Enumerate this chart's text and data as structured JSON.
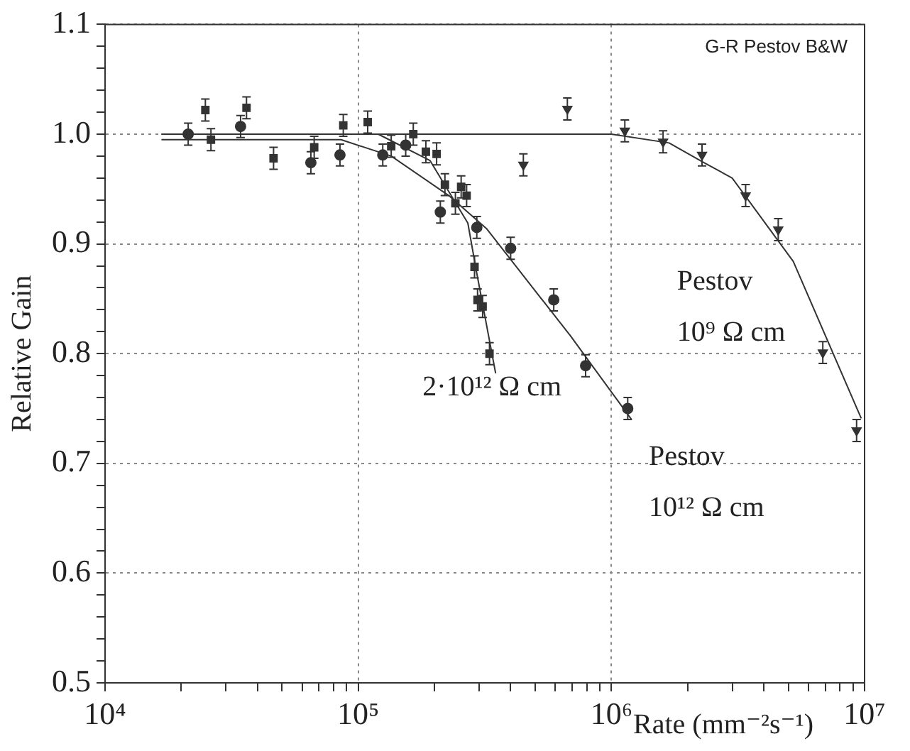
{
  "chart_data": {
    "type": "scatter",
    "xlabel": "Rate (mm⁻²s⁻¹)",
    "ylabel": "Relative Gain",
    "log": "x",
    "grid": true,
    "legend": false,
    "xlim": [
      10000,
      10000000
    ],
    "xticks": [
      {
        "value": 10000,
        "label": "10⁴"
      },
      {
        "value": 20000,
        "label": null
      },
      {
        "value": 30000,
        "label": null
      },
      {
        "value": 40000,
        "label": null
      },
      {
        "value": 50000,
        "label": null
      },
      {
        "value": 60000,
        "label": null
      },
      {
        "value": 70000,
        "label": null
      },
      {
        "value": 80000,
        "label": null
      },
      {
        "value": 90000,
        "label": null
      },
      {
        "value": 100000,
        "label": "10⁵"
      },
      {
        "value": 200000,
        "label": null
      },
      {
        "value": 300000,
        "label": null
      },
      {
        "value": 400000,
        "label": null
      },
      {
        "value": 500000,
        "label": null
      },
      {
        "value": 600000,
        "label": null
      },
      {
        "value": 700000,
        "label": null
      },
      {
        "value": 800000,
        "label": null
      },
      {
        "value": 900000,
        "label": null
      },
      {
        "value": 1000000,
        "label": "10⁶"
      },
      {
        "value": 2000000,
        "label": null
      },
      {
        "value": 3000000,
        "label": null
      },
      {
        "value": 4000000,
        "label": null
      },
      {
        "value": 5000000,
        "label": null
      },
      {
        "value": 6000000,
        "label": null
      },
      {
        "value": 7000000,
        "label": null
      },
      {
        "value": 8000000,
        "label": null
      },
      {
        "value": 9000000,
        "label": null
      },
      {
        "value": 10000000,
        "label": "10⁷"
      }
    ],
    "ylim": [
      0.5,
      1.1
    ],
    "yticks": [
      0.5,
      {
        "value": 0.52,
        "label": null
      },
      {
        "value": 0.54,
        "label": null
      },
      {
        "value": 0.56,
        "label": null
      },
      {
        "value": 0.58,
        "label": null
      },
      0.6,
      {
        "value": 0.62,
        "label": null
      },
      {
        "value": 0.64,
        "label": null
      },
      {
        "value": 0.66,
        "label": null
      },
      {
        "value": 0.68,
        "label": null
      },
      0.7,
      {
        "value": 0.72,
        "label": null
      },
      {
        "value": 0.74,
        "label": null
      },
      {
        "value": 0.76,
        "label": null
      },
      {
        "value": 0.78,
        "label": null
      },
      0.8,
      {
        "value": 0.82,
        "label": null
      },
      {
        "value": 0.84,
        "label": null
      },
      {
        "value": 0.86,
        "label": null
      },
      {
        "value": 0.88,
        "label": null
      },
      0.9,
      {
        "value": 0.92,
        "label": null
      },
      {
        "value": 0.94,
        "label": null
      },
      {
        "value": 0.96,
        "label": null
      },
      {
        "value": 0.98,
        "label": null
      },
      {
        "value": 1,
        "label": "1.0"
      },
      {
        "value": 1.02,
        "label": null
      },
      {
        "value": 1.04,
        "label": null
      },
      {
        "value": 1.06,
        "label": null
      },
      {
        "value": 1.08,
        "label": null
      },
      1.1
    ],
    "series": [
      {
        "marker": "square",
        "color": "#333333",
        "x": [
          24900,
          26200,
          36200,
          46300,
          67000,
          87300,
          109000,
          135000,
          165000,
          185000,
          204000,
          220000,
          255000,
          268000,
          242000,
          288000,
          296000,
          310000,
          330000
        ],
        "values": [
          1.022,
          0.995,
          1.024,
          0.978,
          0.988,
          1.008,
          1.011,
          0.989,
          1.0,
          0.984,
          0.982,
          0.954,
          0.952,
          0.944,
          0.937,
          0.879,
          0.849,
          0.843,
          0.8
        ],
        "errors": [
          0.01,
          0.01,
          0.01,
          0.01,
          0.01,
          0.01,
          0.01,
          0.01,
          0.01,
          0.01,
          0.01,
          0.01,
          0.01,
          0.01,
          0.01,
          0.01,
          0.01,
          0.01,
          0.01
        ]
      },
      {
        "marker": "circle",
        "color": "#333333",
        "x": [
          21300,
          34300,
          65000,
          84700,
          125000,
          154000,
          211000,
          294000,
          400000,
          592000,
          791000,
          1160000
        ],
        "values": [
          1.0,
          1.007,
          0.974,
          0.981,
          0.981,
          0.99,
          0.929,
          0.915,
          0.896,
          0.849,
          0.789,
          0.75
        ],
        "errors": [
          0.01,
          0.01,
          0.01,
          0.01,
          0.01,
          0.01,
          0.01,
          0.01,
          0.01,
          0.01,
          0.01,
          0.01
        ]
      },
      {
        "marker": "triangle",
        "color": "#333333",
        "x": [
          449000,
          670000,
          1130000,
          1600000,
          2280000,
          3390000,
          4560000,
          6840000,
          9300000
        ],
        "values": [
          0.972,
          1.023,
          1.003,
          0.993,
          0.981,
          0.944,
          0.913,
          0.801,
          0.73
        ],
        "errors": [
          0.01,
          0.01,
          0.01,
          0.01,
          0.01,
          0.01,
          0.01,
          0.01,
          0.01
        ]
      },
      {
        "type": "line",
        "marker": "none",
        "color": "#333333",
        "x": [
          16700,
          120000,
          192000,
          271000,
          293000,
          349000
        ],
        "values": [
          1.0,
          1.0,
          0.976,
          0.919,
          0.875,
          0.782
        ]
      },
      {
        "type": "line",
        "marker": "none",
        "color": "#333333",
        "x": [
          16700,
          85500,
          135000,
          228000,
          321000,
          690000,
          1200000
        ],
        "values": [
          0.995,
          0.995,
          0.98,
          0.944,
          0.914,
          0.816,
          0.74
        ]
      },
      {
        "type": "line",
        "marker": "none",
        "color": "#333333",
        "x": [
          16700,
          1000000,
          1690000,
          2280000,
          3000000,
          5230000,
          9700000
        ],
        "values": [
          1.0,
          1.0,
          0.992,
          0.975,
          0.96,
          0.884,
          0.741
        ]
      }
    ],
    "annotations": [
      "G-R Pestov B&W",
      "2·10¹² Ω cm",
      "Pestov\n10⁹ Ω cm",
      "Pestov\n10¹² Ω cm"
    ]
  }
}
